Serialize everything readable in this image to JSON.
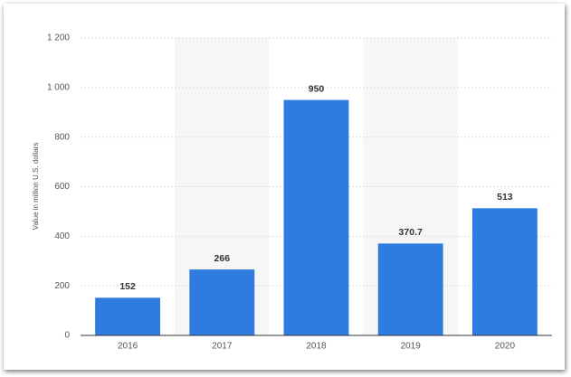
{
  "chart_data": {
    "type": "bar",
    "y_axis_label": "Value in million U.S. dollars",
    "categories": [
      "2016",
      "2017",
      "2018",
      "2019",
      "2020"
    ],
    "values": [
      152,
      266,
      950,
      370.7,
      513
    ],
    "color": "#2e7ce0",
    "ylim": [
      0,
      1200
    ],
    "yticks": [
      0,
      200,
      400,
      600,
      800,
      {
        "value": 1000,
        "label": "1 000"
      },
      {
        "value": 1200,
        "label": "1 200"
      }
    ],
    "grid": true
  }
}
